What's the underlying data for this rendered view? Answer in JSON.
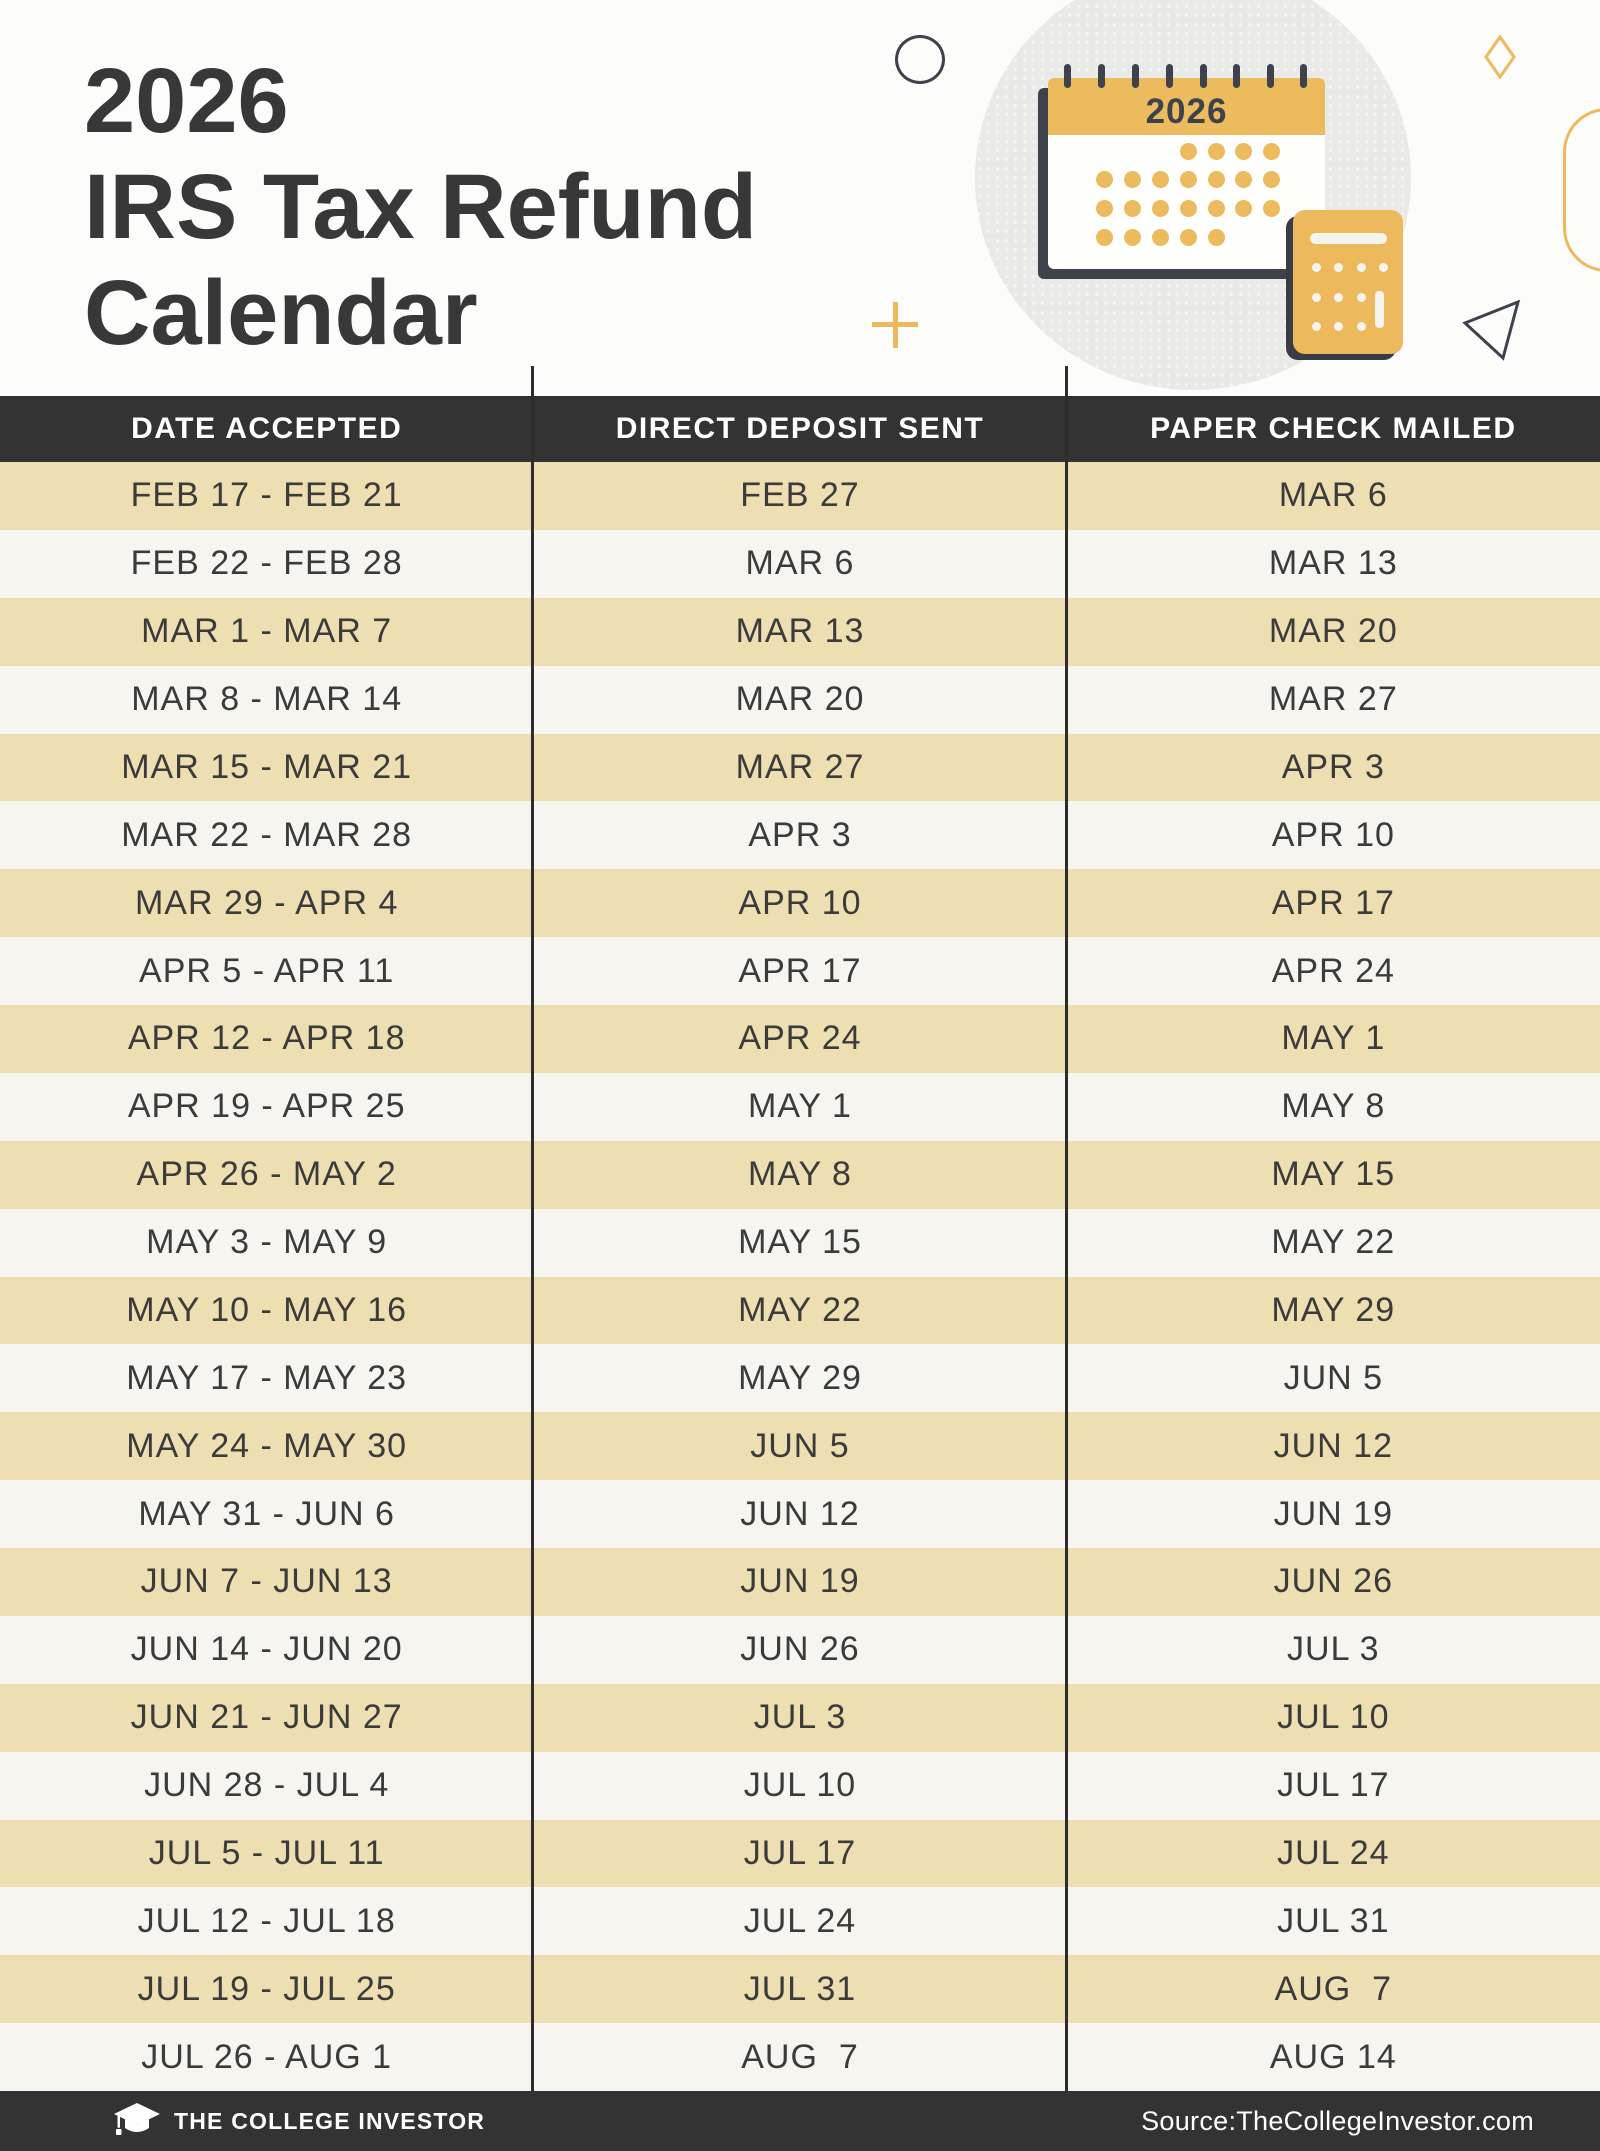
{
  "header": {
    "title_lines": [
      "2026",
      "IRS Tax Refund",
      "Calendar"
    ],
    "calendar_year": "2026"
  },
  "table": {
    "headers": [
      "DATE ACCEPTED",
      "DIRECT DEPOSIT SENT",
      "PAPER CHECK MAILED"
    ],
    "rows": [
      {
        "date_accepted": "FEB 17 - FEB 21",
        "direct_deposit_sent": "FEB 27",
        "paper_check_mailed": "MAR 6"
      },
      {
        "date_accepted": "FEB 22 - FEB 28",
        "direct_deposit_sent": "MAR 6",
        "paper_check_mailed": "MAR 13"
      },
      {
        "date_accepted": "MAR 1 - MAR 7",
        "direct_deposit_sent": "MAR 13",
        "paper_check_mailed": "MAR 20"
      },
      {
        "date_accepted": "MAR 8 - MAR 14",
        "direct_deposit_sent": "MAR 20",
        "paper_check_mailed": "MAR 27"
      },
      {
        "date_accepted": "MAR 15 - MAR 21",
        "direct_deposit_sent": "MAR 27",
        "paper_check_mailed": "APR 3"
      },
      {
        "date_accepted": "MAR 22 - MAR 28",
        "direct_deposit_sent": "APR 3",
        "paper_check_mailed": "APR 10"
      },
      {
        "date_accepted": "MAR 29 - APR 4",
        "direct_deposit_sent": "APR 10",
        "paper_check_mailed": "APR 17"
      },
      {
        "date_accepted": "APR 5 - APR 11",
        "direct_deposit_sent": "APR 17",
        "paper_check_mailed": "APR 24"
      },
      {
        "date_accepted": "APR 12 - APR 18",
        "direct_deposit_sent": "APR 24",
        "paper_check_mailed": "MAY 1"
      },
      {
        "date_accepted": "APR 19 - APR 25",
        "direct_deposit_sent": "MAY 1",
        "paper_check_mailed": "MAY 8"
      },
      {
        "date_accepted": "APR 26 - MAY 2",
        "direct_deposit_sent": "MAY 8",
        "paper_check_mailed": "MAY 15"
      },
      {
        "date_accepted": "MAY 3 - MAY 9",
        "direct_deposit_sent": "MAY 15",
        "paper_check_mailed": "MAY 22"
      },
      {
        "date_accepted": "MAY 10 - MAY 16",
        "direct_deposit_sent": "MAY 22",
        "paper_check_mailed": "MAY 29"
      },
      {
        "date_accepted": "MAY 17 - MAY 23",
        "direct_deposit_sent": "MAY 29",
        "paper_check_mailed": "JUN 5"
      },
      {
        "date_accepted": "MAY 24 - MAY 30",
        "direct_deposit_sent": "JUN 5",
        "paper_check_mailed": "JUN 12"
      },
      {
        "date_accepted": "MAY 31 - JUN 6",
        "direct_deposit_sent": "JUN 12",
        "paper_check_mailed": "JUN 19"
      },
      {
        "date_accepted": "JUN 7 - JUN 13",
        "direct_deposit_sent": "JUN 19",
        "paper_check_mailed": "JUN 26"
      },
      {
        "date_accepted": "JUN 14 - JUN 20",
        "direct_deposit_sent": "JUN 26",
        "paper_check_mailed": "JUL 3"
      },
      {
        "date_accepted": "JUN 21 - JUN 27",
        "direct_deposit_sent": "JUL 3",
        "paper_check_mailed": "JUL 10"
      },
      {
        "date_accepted": "JUN 28 - JUL 4",
        "direct_deposit_sent": "JUL 10",
        "paper_check_mailed": "JUL 17"
      },
      {
        "date_accepted": "JUL 5 - JUL 11",
        "direct_deposit_sent": "JUL 17",
        "paper_check_mailed": "JUL 24"
      },
      {
        "date_accepted": "JUL 12 - JUL 18",
        "direct_deposit_sent": "JUL 24",
        "paper_check_mailed": "JUL 31"
      },
      {
        "date_accepted": "JUL 19 - JUL 25",
        "direct_deposit_sent": "JUL 31",
        "paper_check_mailed": "AUG  7"
      },
      {
        "date_accepted": "JUL 26 - AUG 1",
        "direct_deposit_sent": "AUG  7",
        "paper_check_mailed": "AUG 14"
      }
    ]
  },
  "footer": {
    "brand": "THE COLLEGE INVESTOR",
    "source": "Source:TheCollegeInvestor.com"
  },
  "icons": {
    "footer_logo": "graduation-cap-icon",
    "illustration": [
      "calendar-icon",
      "calculator-icon"
    ]
  },
  "colors": {
    "band_dark": "#333333",
    "row_tan": "#eedfb2",
    "row_cream": "#f6f5f0",
    "accent_gold": "#ecba5c",
    "illustration_ink": "#3d424b",
    "ellipse_gray": "#e9e9e7",
    "text_dark": "#3b3b3b"
  }
}
